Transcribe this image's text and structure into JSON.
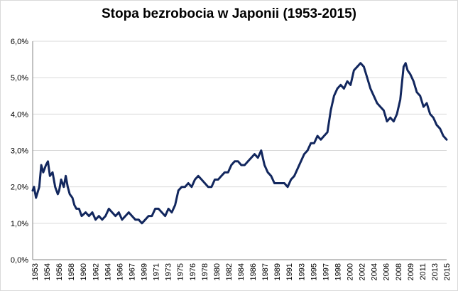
{
  "chart_data": {
    "type": "line",
    "title": "Stopa bezrobocia w Japonii (1953-2015)",
    "xlabel": "",
    "ylabel": "",
    "ylim": [
      0,
      6
    ],
    "y_ticks": [
      "0,0%",
      "1,0%",
      "2,0%",
      "3,0%",
      "4,0%",
      "5,0%",
      "6,0%"
    ],
    "x_tick_labels": [
      "1953",
      "1954",
      "1956",
      "1958",
      "1960",
      "1962",
      "1964",
      "1966",
      "1967",
      "1969",
      "1971",
      "1973",
      "1975",
      "1976",
      "1978",
      "1980",
      "1982",
      "1984",
      "1986",
      "1987",
      "1989",
      "1991",
      "1993",
      "1995",
      "1997",
      "1998",
      "2000",
      "2002",
      "2004",
      "2006",
      "2008",
      "2009",
      "2011",
      "2013",
      "2015"
    ],
    "grid": true,
    "series": [
      {
        "color": "#12275e",
        "x": [
          1953.0,
          1953.2,
          1953.5,
          1954.0,
          1954.3,
          1954.6,
          1955.0,
          1955.3,
          1955.6,
          1956.0,
          1956.4,
          1956.8,
          1957.0,
          1957.3,
          1957.7,
          1958.0,
          1958.3,
          1958.6,
          1959.0,
          1959.3,
          1959.6,
          1960.0,
          1960.4,
          1961.0,
          1961.5,
          1962.0,
          1962.5,
          1963.0,
          1963.5,
          1964.0,
          1964.5,
          1965.0,
          1965.5,
          1966.0,
          1966.5,
          1967.0,
          1967.5,
          1968.0,
          1968.5,
          1969.0,
          1969.5,
          1970.0,
          1970.5,
          1971.0,
          1971.5,
          1972.0,
          1972.5,
          1973.0,
          1973.5,
          1974.0,
          1974.5,
          1975.0,
          1975.5,
          1976.0,
          1976.5,
          1977.0,
          1977.5,
          1978.0,
          1978.5,
          1979.0,
          1979.5,
          1980.0,
          1980.5,
          1981.0,
          1981.5,
          1982.0,
          1982.5,
          1983.0,
          1983.5,
          1984.0,
          1984.5,
          1985.0,
          1985.5,
          1986.0,
          1986.5,
          1987.0,
          1987.5,
          1988.0,
          1988.5,
          1989.0,
          1989.5,
          1990.0,
          1990.5,
          1991.0,
          1991.5,
          1992.0,
          1992.5,
          1993.0,
          1993.5,
          1994.0,
          1994.5,
          1995.0,
          1995.5,
          1996.0,
          1996.5,
          1997.0,
          1997.5,
          1998.0,
          1998.5,
          1999.0,
          1999.5,
          2000.0,
          2000.5,
          2001.0,
          2001.5,
          2002.0,
          2002.5,
          2003.0,
          2003.5,
          2004.0,
          2004.5,
          2005.0,
          2005.5,
          2006.0,
          2006.5,
          2007.0,
          2007.5,
          2008.0,
          2008.5,
          2009.0,
          2009.3,
          2009.6,
          2010.0,
          2010.5,
          2011.0,
          2011.5,
          2012.0,
          2012.5,
          2013.0,
          2013.5,
          2014.0,
          2014.5,
          2015.0,
          2015.5
        ],
        "values": [
          1.9,
          2.0,
          1.7,
          2.0,
          2.6,
          2.4,
          2.6,
          2.7,
          2.3,
          2.4,
          2.0,
          1.8,
          1.9,
          2.2,
          2.0,
          2.3,
          2.0,
          1.8,
          1.7,
          1.5,
          1.4,
          1.4,
          1.2,
          1.3,
          1.2,
          1.3,
          1.1,
          1.2,
          1.1,
          1.2,
          1.4,
          1.3,
          1.2,
          1.3,
          1.1,
          1.2,
          1.3,
          1.2,
          1.1,
          1.1,
          1.0,
          1.1,
          1.2,
          1.2,
          1.4,
          1.4,
          1.3,
          1.2,
          1.4,
          1.3,
          1.5,
          1.9,
          2.0,
          2.0,
          2.1,
          2.0,
          2.2,
          2.3,
          2.2,
          2.1,
          2.0,
          2.0,
          2.2,
          2.2,
          2.3,
          2.4,
          2.4,
          2.6,
          2.7,
          2.7,
          2.6,
          2.6,
          2.7,
          2.8,
          2.9,
          2.8,
          3.0,
          2.6,
          2.4,
          2.3,
          2.1,
          2.1,
          2.1,
          2.1,
          2.0,
          2.2,
          2.3,
          2.5,
          2.7,
          2.9,
          3.0,
          3.2,
          3.2,
          3.4,
          3.3,
          3.4,
          3.5,
          4.1,
          4.5,
          4.7,
          4.8,
          4.7,
          4.9,
          4.8,
          5.2,
          5.3,
          5.4,
          5.3,
          5.0,
          4.7,
          4.5,
          4.3,
          4.2,
          4.1,
          3.8,
          3.9,
          3.8,
          4.0,
          4.4,
          5.3,
          5.4,
          5.2,
          5.1,
          4.9,
          4.6,
          4.5,
          4.2,
          4.3,
          4.0,
          3.9,
          3.7,
          3.6,
          3.4,
          3.3
        ]
      }
    ]
  }
}
